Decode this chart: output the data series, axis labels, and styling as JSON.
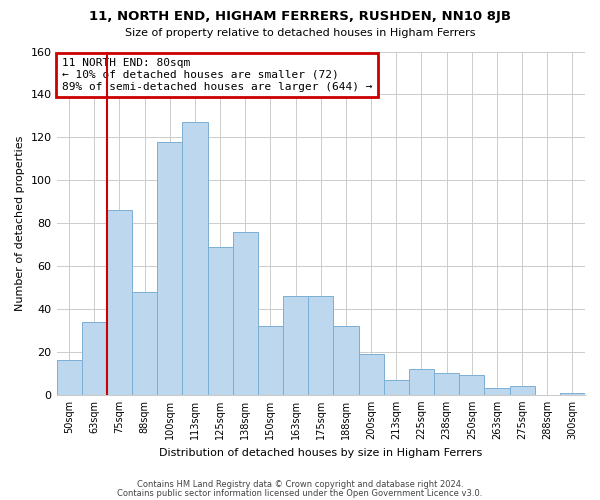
{
  "title": "11, NORTH END, HIGHAM FERRERS, RUSHDEN, NN10 8JB",
  "subtitle": "Size of property relative to detached houses in Higham Ferrers",
  "xlabel": "Distribution of detached houses by size in Higham Ferrers",
  "ylabel": "Number of detached properties",
  "footnote1": "Contains HM Land Registry data © Crown copyright and database right 2024.",
  "footnote2": "Contains public sector information licensed under the Open Government Licence v3.0.",
  "bar_labels": [
    "50sqm",
    "63sqm",
    "75sqm",
    "88sqm",
    "100sqm",
    "113sqm",
    "125sqm",
    "138sqm",
    "150sqm",
    "163sqm",
    "175sqm",
    "188sqm",
    "200sqm",
    "213sqm",
    "225sqm",
    "238sqm",
    "250sqm",
    "263sqm",
    "275sqm",
    "288sqm",
    "300sqm"
  ],
  "bar_values": [
    16,
    34,
    86,
    48,
    118,
    127,
    69,
    76,
    32,
    46,
    46,
    32,
    19,
    7,
    12,
    10,
    9,
    3,
    4,
    0,
    1
  ],
  "bar_color": "#bdd7ee",
  "bar_edge_color": "#7bafd4",
  "vline_color": "#cc0000",
  "vline_index": 2,
  "annotation_title": "11 NORTH END: 80sqm",
  "annotation_line1": "← 10% of detached houses are smaller (72)",
  "annotation_line2": "89% of semi-detached houses are larger (644) →",
  "annotation_box_color": "#cc0000",
  "ylim": [
    0,
    160
  ],
  "yticks": [
    0,
    20,
    40,
    60,
    80,
    100,
    120,
    140,
    160
  ],
  "background_color": "#ffffff",
  "grid_color": "#cccccc"
}
